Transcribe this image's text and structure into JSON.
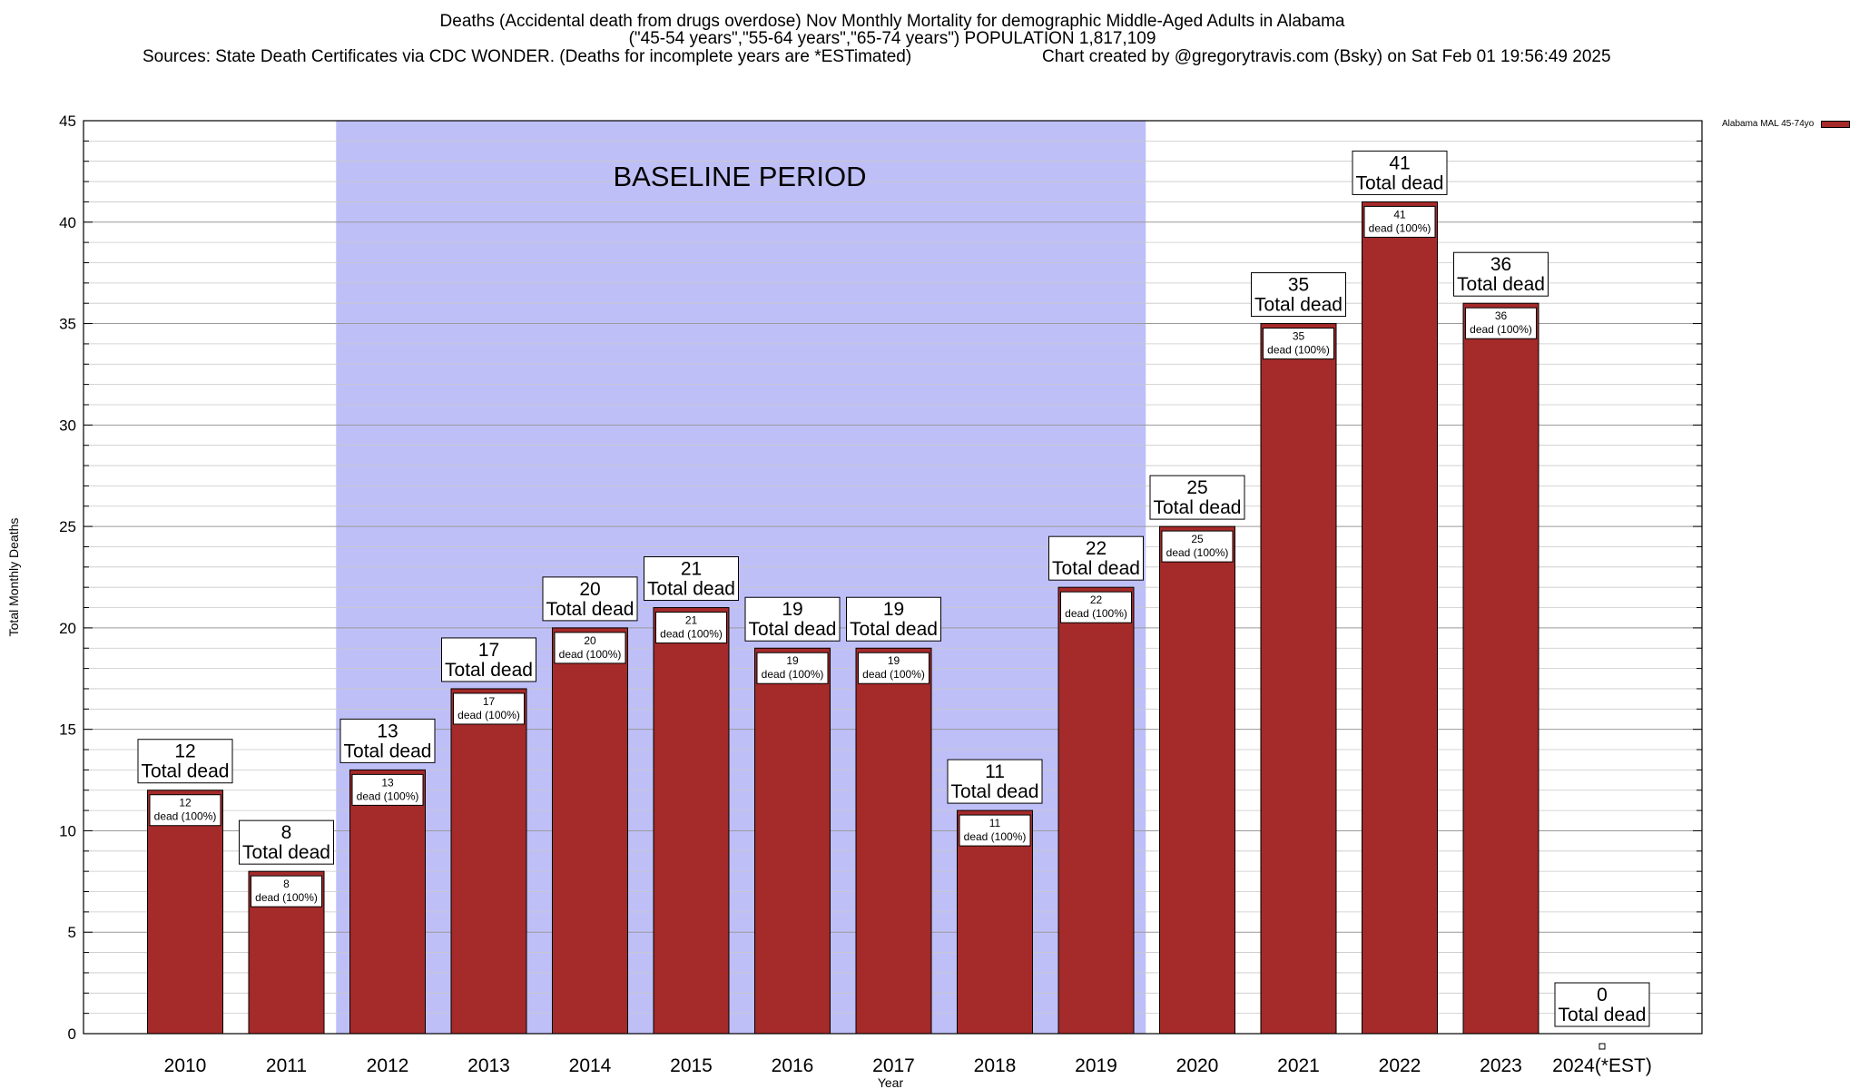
{
  "title": {
    "line1": "Deaths (Accidental death from drugs overdose) Nov Monthly Mortality for demographic Middle-Aged Adults in Alabama",
    "line2": "(\"45-54 years\",\"55-64 years\",\"65-74 years\") POPULATION 1,817,109",
    "line3": "Sources: State Death Certificates via CDC WONDER. (Deaths for incomplete years are *ESTimated)",
    "line4": "Chart created by @gregorytravis.com (Bsky) on Sat Feb 01 19:56:49 2025"
  },
  "colors": {
    "bar": "#a52a2a",
    "baseline": "#bfbff8"
  },
  "chart_data": {
    "type": "bar",
    "categories": [
      "2010",
      "2011",
      "2012",
      "2013",
      "2014",
      "2015",
      "2016",
      "2017",
      "2018",
      "2019",
      "2020",
      "2021",
      "2022",
      "2023",
      "2024(*EST)"
    ],
    "series": [
      {
        "name": "Alabama MAL 45-74yo",
        "values": [
          12,
          8,
          13,
          17,
          20,
          21,
          19,
          19,
          11,
          22,
          25,
          35,
          41,
          36,
          0
        ]
      }
    ],
    "xlabel": "Year",
    "ylabel": "Total Monthly Deaths",
    "ylim": [
      0,
      45
    ],
    "yticks": [
      0,
      5,
      10,
      15,
      20,
      25,
      30,
      35,
      40,
      45
    ],
    "grid": true,
    "legend_position": "top-right",
    "label_top_suffix": "Total dead",
    "label_inner_suffix": "dead (100%)",
    "shaded_region": {
      "label": "BASELINE PERIOD",
      "from": "2012",
      "to": "2019"
    }
  }
}
